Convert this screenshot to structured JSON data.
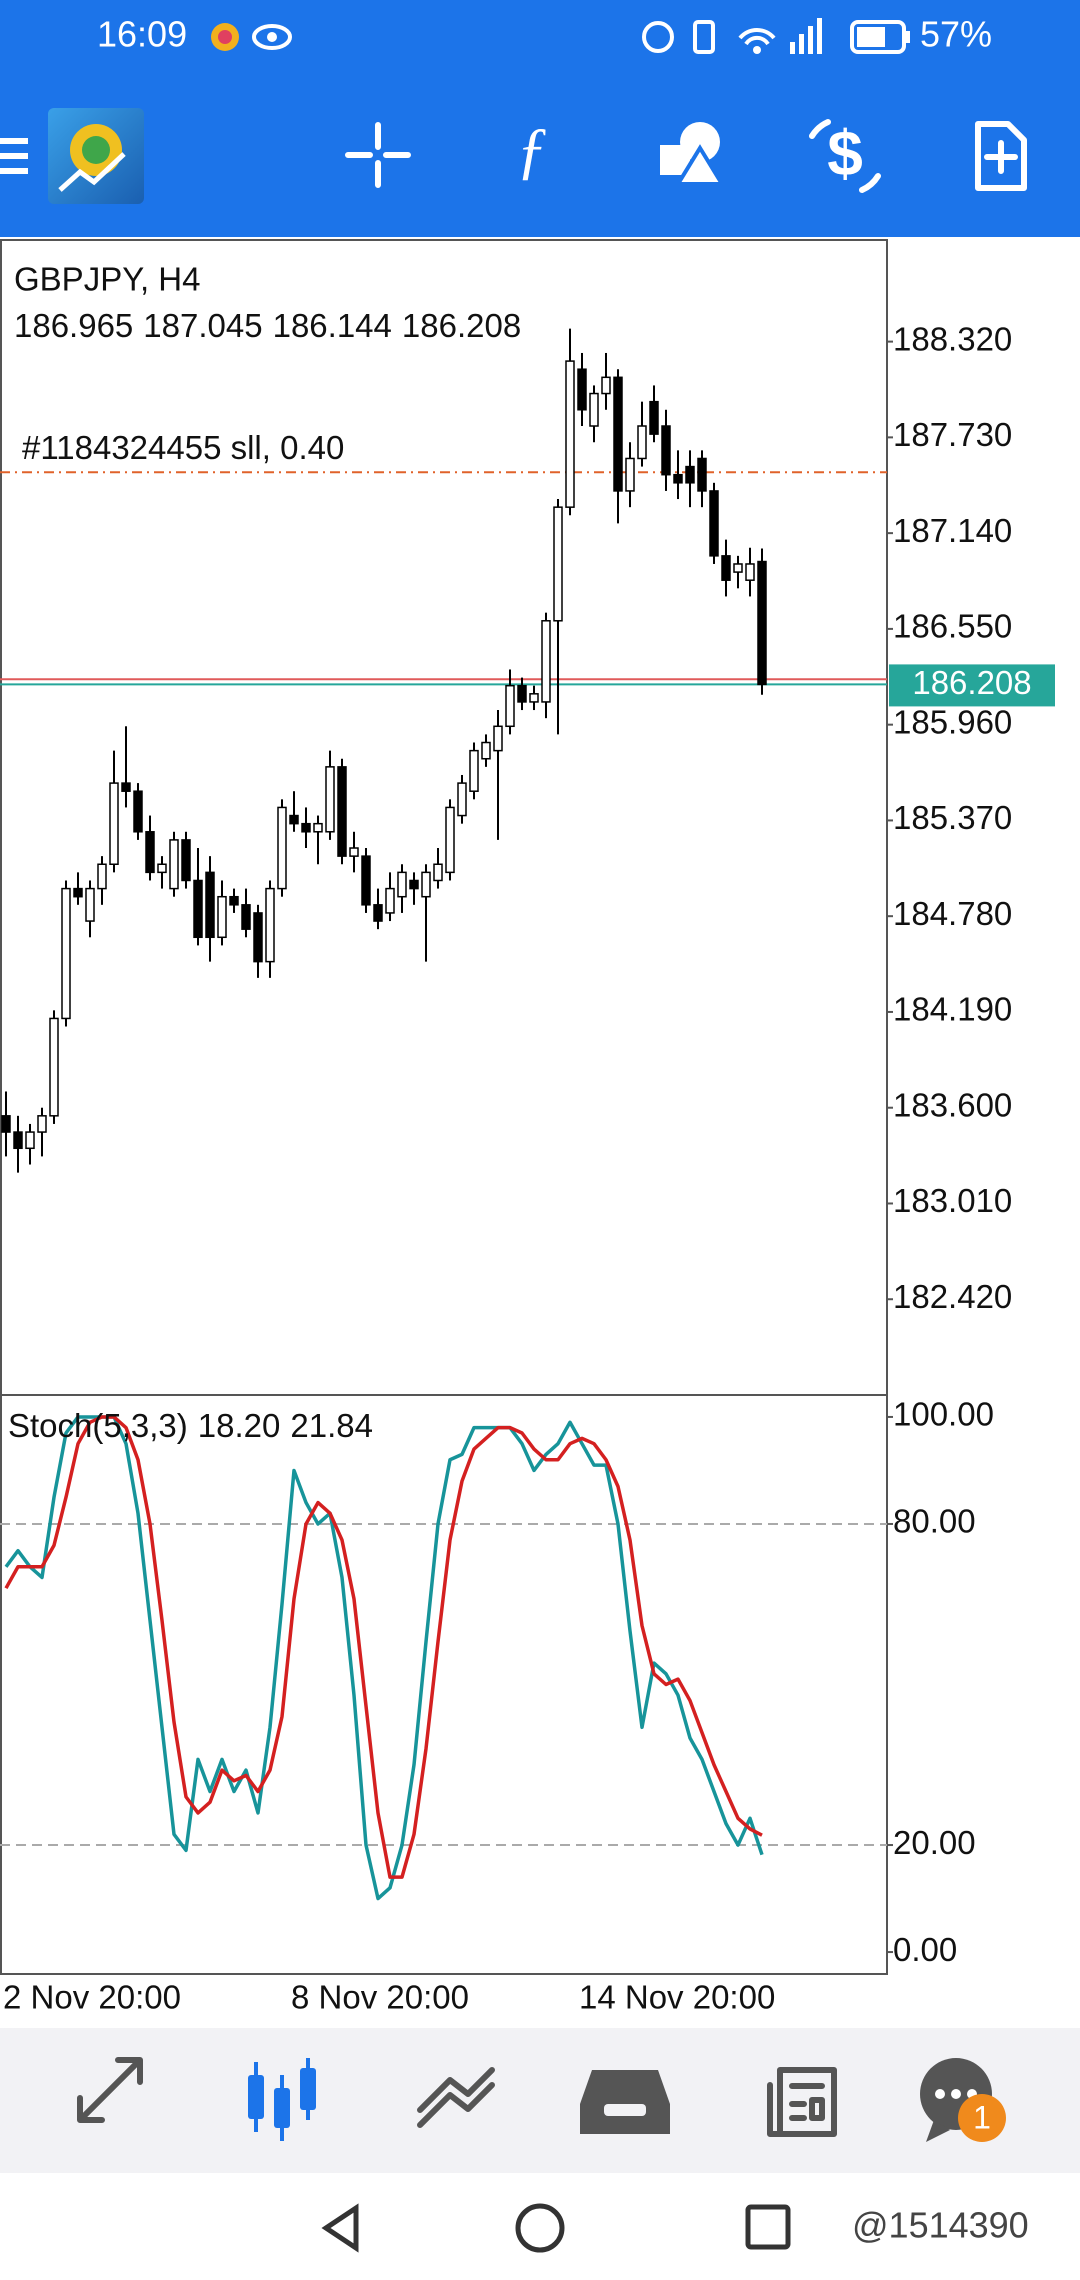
{
  "status_bar": {
    "time": "16:09",
    "battery": "57%"
  },
  "chart_data": [
    {
      "type": "candlestick",
      "title": "GBPJPY, H4",
      "categories": [
        "2 Nov 20:00",
        null,
        null,
        null,
        null,
        null,
        null,
        null,
        null,
        null,
        null,
        null,
        null,
        null,
        null,
        null,
        null,
        null,
        null,
        null,
        null,
        null,
        null,
        null,
        "8 Nov 20:00",
        null,
        null,
        null,
        null,
        null,
        null,
        null,
        null,
        null,
        null,
        null,
        null,
        null,
        null,
        null,
        null,
        null,
        null,
        null,
        null,
        null,
        null,
        null,
        "14 Nov 20:00",
        null,
        null,
        null,
        null,
        null,
        null,
        null,
        null,
        null,
        null,
        null,
        null,
        null,
        null,
        null
      ],
      "open": [
        183.55,
        183.45,
        183.35,
        183.45,
        183.55,
        184.15,
        184.95,
        184.75,
        184.95,
        185.1,
        185.6,
        185.55,
        185.3,
        185.05,
        184.95,
        185.25,
        185.0,
        185.05,
        184.65,
        184.9,
        184.85,
        184.8,
        184.5,
        184.95,
        185.4,
        185.35,
        185.3,
        185.3,
        185.7,
        185.15,
        185.15,
        184.85,
        184.8,
        184.9,
        185.0,
        184.9,
        185.0,
        185.05,
        185.4,
        185.55,
        185.75,
        185.8,
        185.95,
        186.2,
        186.1,
        186.1,
        186.6,
        187.3,
        188.15,
        187.8,
        188.0,
        188.1,
        187.4,
        187.6,
        187.95,
        187.8,
        187.5,
        187.55,
        187.6,
        187.4,
        187.0,
        186.9,
        186.85,
        186.965
      ],
      "high": [
        183.7,
        183.55,
        183.5,
        183.6,
        184.2,
        185.0,
        185.05,
        185.0,
        185.15,
        185.8,
        185.95,
        185.6,
        185.4,
        185.15,
        185.3,
        185.3,
        185.2,
        185.15,
        185.0,
        184.95,
        184.95,
        184.85,
        185.0,
        185.5,
        185.55,
        185.45,
        185.4,
        185.8,
        185.75,
        185.3,
        185.2,
        184.95,
        185.05,
        185.1,
        185.05,
        185.1,
        185.2,
        185.5,
        185.65,
        185.85,
        185.9,
        186.05,
        186.3,
        186.25,
        186.2,
        186.65,
        187.35,
        188.4,
        188.25,
        188.05,
        188.25,
        188.15,
        187.7,
        187.95,
        188.05,
        187.9,
        187.65,
        187.65,
        187.65,
        187.45,
        187.1,
        187.0,
        187.05,
        187.045
      ],
      "low": [
        183.3,
        183.2,
        183.25,
        183.3,
        183.5,
        184.1,
        184.85,
        184.65,
        184.85,
        185.05,
        185.45,
        185.25,
        185.0,
        184.95,
        184.9,
        184.95,
        184.6,
        184.5,
        184.6,
        184.8,
        184.65,
        184.4,
        184.4,
        184.9,
        185.3,
        185.2,
        185.1,
        185.25,
        185.1,
        185.05,
        184.8,
        184.7,
        184.75,
        184.8,
        184.85,
        184.5,
        184.95,
        185.0,
        185.35,
        185.5,
        185.7,
        185.25,
        185.9,
        186.05,
        186.05,
        186.0,
        185.9,
        187.25,
        187.8,
        187.7,
        187.9,
        187.2,
        187.3,
        187.55,
        187.7,
        187.4,
        187.35,
        187.3,
        187.3,
        186.95,
        186.75,
        186.8,
        186.75,
        186.144
      ],
      "close": [
        183.45,
        183.35,
        183.45,
        183.55,
        184.15,
        184.95,
        184.9,
        184.95,
        185.1,
        185.6,
        185.55,
        185.3,
        185.05,
        185.1,
        185.25,
        185.0,
        184.65,
        184.65,
        184.9,
        184.85,
        184.7,
        184.5,
        184.95,
        185.45,
        185.35,
        185.3,
        185.35,
        185.7,
        185.15,
        185.2,
        184.85,
        184.75,
        184.95,
        185.05,
        184.95,
        185.05,
        185.1,
        185.45,
        185.6,
        185.8,
        185.85,
        185.95,
        186.2,
        186.1,
        186.15,
        186.6,
        187.3,
        188.2,
        187.9,
        188.0,
        188.1,
        187.4,
        187.6,
        187.8,
        187.75,
        187.5,
        187.45,
        187.45,
        187.4,
        187.0,
        186.85,
        186.95,
        186.95,
        186.208
      ],
      "up_color": "#ffffff",
      "down_color": "#000000",
      "outline_color": "#000000",
      "ylim": [
        181.83,
        188.946
      ],
      "yticks": [
        {
          "value": 188.32,
          "label": "188.320"
        },
        {
          "value": 187.73,
          "label": "187.730"
        },
        {
          "value": 187.14,
          "label": "187.140"
        },
        {
          "value": 186.55,
          "label": "186.550"
        },
        {
          "value": 185.96,
          "label": "185.960"
        },
        {
          "value": 185.37,
          "label": "185.370"
        },
        {
          "value": 184.78,
          "label": "184.780"
        },
        {
          "value": 184.19,
          "label": "184.190"
        },
        {
          "value": 183.6,
          "label": "183.600"
        },
        {
          "value": 183.01,
          "label": "183.010"
        },
        {
          "value": 182.42,
          "label": "182.420"
        }
      ],
      "order": {
        "label": "#1184324455 sll, 0.40",
        "value": 187.515,
        "color": "#e0622a"
      },
      "ask": {
        "value": 186.24,
        "color": "#e05a5a"
      },
      "bid_color": "#26a69a"
    },
    {
      "type": "line",
      "title": "Stoch(5,3,3)",
      "series": [
        {
          "color": "#17949a",
          "values": [
            72,
            75,
            72,
            70,
            85,
            97,
            100,
            100,
            100,
            100,
            95,
            82,
            62,
            42,
            22,
            19,
            36,
            30,
            36,
            30,
            34,
            26,
            42,
            65,
            90,
            84,
            80,
            82,
            70,
            48,
            20,
            10,
            12,
            20,
            35,
            58,
            80,
            92,
            93,
            98,
            98,
            98,
            98,
            95,
            90,
            93,
            95,
            99,
            95,
            91,
            91,
            80,
            60,
            42,
            54,
            52,
            48,
            40,
            36,
            30,
            24,
            20,
            25,
            18.2
          ],
          "value_labels": [
            null,
            null,
            null,
            null,
            null,
            null,
            null,
            null,
            null,
            null,
            null,
            null,
            null,
            null,
            null,
            null,
            null,
            null,
            null,
            null,
            null,
            null,
            null,
            null,
            null,
            null,
            null,
            null,
            null,
            null,
            null,
            null,
            null,
            null,
            null,
            null,
            null,
            null,
            null,
            null,
            null,
            null,
            null,
            null,
            null,
            null,
            null,
            null,
            null,
            null,
            null,
            null,
            null,
            null,
            null,
            null,
            null,
            null,
            null,
            null,
            null,
            null,
            null,
            "18.20"
          ]
        },
        {
          "color": "#d42020",
          "values": [
            68,
            72,
            72,
            72,
            76,
            85,
            95,
            99,
            100,
            100,
            98,
            92,
            80,
            62,
            43,
            29,
            26,
            28,
            34,
            32,
            33,
            30,
            34,
            44,
            66,
            80,
            84,
            82,
            77,
            66,
            46,
            26,
            14,
            14,
            22,
            38,
            58,
            77,
            88,
            94,
            96,
            98,
            98,
            97,
            94,
            92,
            92,
            95,
            96,
            95,
            92,
            87,
            77,
            61,
            52,
            50,
            51,
            47,
            41,
            35,
            30,
            25,
            23,
            21.84
          ],
          "value_labels": [
            null,
            null,
            null,
            null,
            null,
            null,
            null,
            null,
            null,
            null,
            null,
            null,
            null,
            null,
            null,
            null,
            null,
            null,
            null,
            null,
            null,
            null,
            null,
            null,
            null,
            null,
            null,
            null,
            null,
            null,
            null,
            null,
            null,
            null,
            null,
            null,
            null,
            null,
            null,
            null,
            null,
            null,
            null,
            null,
            null,
            null,
            null,
            null,
            null,
            null,
            null,
            null,
            null,
            null,
            null,
            null,
            null,
            null,
            null,
            null,
            null,
            null,
            null,
            "21.84"
          ]
        }
      ],
      "ylim": [
        -4.1,
        104.1
      ],
      "yticks": [
        {
          "value": 100,
          "label": "100.00"
        },
        {
          "value": 80,
          "label": "80.00"
        },
        {
          "value": 20,
          "label": "20.00"
        },
        {
          "value": 0,
          "label": "0.00"
        }
      ],
      "levels": [
        80,
        20
      ]
    }
  ],
  "ui": {
    "badge": "1",
    "watermark": "@1514390"
  }
}
